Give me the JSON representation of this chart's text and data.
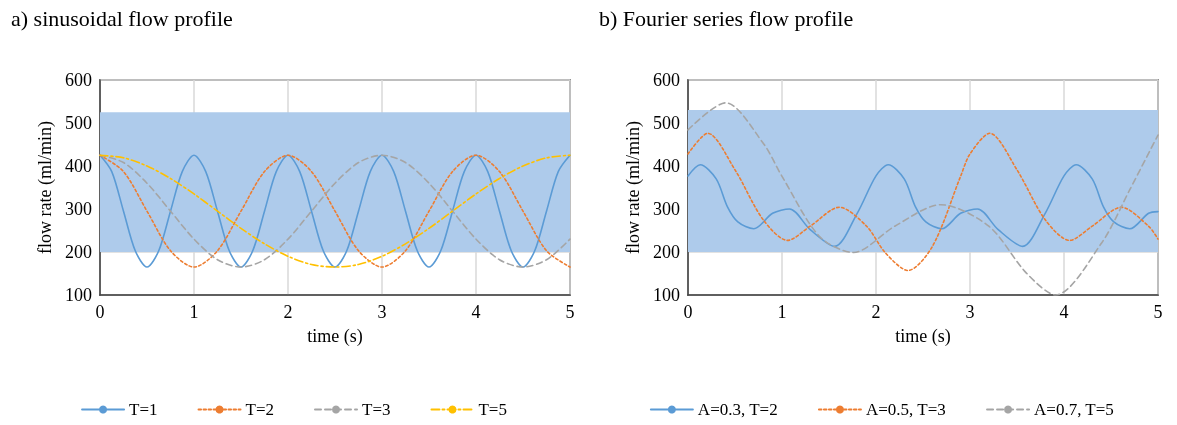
{
  "chart_data": [
    {
      "type": "line",
      "title": "a) sinusoidal flow profile",
      "xlabel": "time (s)",
      "ylabel": "flow rate (ml/min)",
      "xlim": [
        0,
        5
      ],
      "xticks": [
        0,
        1,
        2,
        3,
        4,
        5
      ],
      "ylim": [
        100,
        600
      ],
      "yticks": [
        100,
        200,
        300,
        400,
        500,
        600
      ],
      "grid": true,
      "legend": "bottom",
      "marker": "none",
      "bands": [
        {
          "axis": "y",
          "from": 200,
          "to": 525,
          "color": "#aecbeb"
        }
      ],
      "series": [
        {
          "name": "T=1",
          "color": "#5b9bd5",
          "line_style": "solid",
          "x": [
            0,
            0.125,
            0.25,
            0.375,
            0.5,
            0.625,
            0.75,
            0.875,
            1,
            1.125,
            1.25,
            1.375,
            1.5,
            1.625,
            1.75,
            1.875,
            2,
            2.125,
            2.25,
            2.375,
            2.5,
            2.625,
            2.75,
            2.875,
            3,
            3.125,
            3.25,
            3.375,
            3.5,
            3.625,
            3.75,
            3.875,
            4,
            4.125,
            4.25,
            4.375,
            4.5,
            4.625,
            4.75,
            4.875,
            5
          ],
          "values": [
            425,
            387,
            295,
            203,
            165,
            203,
            295,
            387,
            425,
            387,
            295,
            203,
            165,
            203,
            295,
            387,
            425,
            387,
            295,
            203,
            165,
            203,
            295,
            387,
            425,
            387,
            295,
            203,
            165,
            203,
            295,
            387,
            425,
            387,
            295,
            203,
            165,
            203,
            295,
            387,
            425
          ]
        },
        {
          "name": "T=2",
          "color": "#ed7d31",
          "line_style": "dotted",
          "x": [
            0,
            0.25,
            0.5,
            0.75,
            1,
            1.25,
            1.5,
            1.75,
            2,
            2.25,
            2.5,
            2.75,
            3,
            3.25,
            3.5,
            3.75,
            4,
            4.25,
            4.5,
            4.75,
            5
          ],
          "values": [
            425,
            387,
            295,
            203,
            165,
            203,
            295,
            387,
            425,
            387,
            295,
            203,
            165,
            203,
            295,
            387,
            425,
            387,
            295,
            203,
            165
          ]
        },
        {
          "name": "T=3",
          "color": "#a5a5a5",
          "line_style": "dashed",
          "x": [
            0,
            0.25,
            0.5,
            0.75,
            1,
            1.25,
            1.5,
            1.75,
            2,
            2.25,
            2.5,
            2.75,
            3,
            3.25,
            3.5,
            3.75,
            4,
            4.25,
            4.5,
            4.75,
            5
          ],
          "values": [
            425,
            408,
            360,
            295,
            230,
            182,
            165,
            182,
            230,
            295,
            360,
            408,
            425,
            408,
            360,
            295,
            230,
            182,
            165,
            182,
            230
          ]
        },
        {
          "name": "T=5",
          "color": "#ffc000",
          "line_style": "dashdot",
          "x": [
            0,
            0.25,
            0.5,
            0.75,
            1,
            1.25,
            1.5,
            1.75,
            2,
            2.25,
            2.5,
            2.75,
            3,
            3.25,
            3.5,
            3.75,
            4,
            4.25,
            4.5,
            4.75,
            5
          ],
          "values": [
            425,
            419,
            400,
            371,
            335,
            295,
            255,
            219,
            190,
            171,
            165,
            171,
            190,
            219,
            255,
            295,
            335,
            371,
            400,
            419,
            425
          ]
        }
      ]
    },
    {
      "type": "line",
      "title": "b) Fourier series flow profile",
      "xlabel": "time (s)",
      "ylabel": "flow rate (ml/min)",
      "xlim": [
        0,
        5
      ],
      "xticks": [
        0,
        1,
        2,
        3,
        4,
        5
      ],
      "ylim": [
        100,
        600
      ],
      "yticks": [
        100,
        200,
        300,
        400,
        500,
        600
      ],
      "grid": true,
      "legend": "bottom",
      "marker": "none",
      "bands": [
        {
          "axis": "y",
          "from": 200,
          "to": 530,
          "color": "#aecbeb"
        }
      ],
      "series": [
        {
          "name": "A=0.3, T=2",
          "color": "#5b9bd5",
          "line_style": "solid",
          "x": [
            0,
            0.13,
            0.3,
            0.42,
            0.53,
            0.7,
            0.9,
            1.08,
            1.3,
            1.56,
            1.8,
            2,
            2.13,
            2.3,
            2.42,
            2.53,
            2.7,
            2.9,
            3.08,
            3.3,
            3.56,
            3.8,
            4,
            4.13,
            4.3,
            4.42,
            4.53,
            4.7,
            4.9,
            5
          ],
          "values": [
            377,
            403,
            370,
            305,
            270,
            254,
            290,
            300,
            252,
            213,
            290,
            377,
            403,
            370,
            305,
            270,
            254,
            290,
            300,
            252,
            213,
            290,
            377,
            403,
            370,
            305,
            270,
            254,
            290,
            294
          ]
        },
        {
          "name": "A=0.5, T=3",
          "color": "#ed7d31",
          "line_style": "dotted",
          "x": [
            0,
            0.21,
            0.5,
            0.8,
            1.06,
            1.3,
            1.61,
            1.9,
            2.1,
            2.34,
            2.6,
            2.9,
            3,
            3.21,
            3.5,
            3.8,
            4.06,
            4.3,
            4.61,
            4.9,
            5
          ],
          "values": [
            428,
            476,
            391,
            275,
            227,
            260,
            304,
            260,
            198,
            157,
            213,
            376,
            428,
            476,
            391,
            275,
            227,
            260,
            304,
            260,
            230
          ]
        },
        {
          "name": "A=0.7, T=5",
          "color": "#a5a5a5",
          "line_style": "dashed",
          "x": [
            0,
            0.4,
            0.8,
            1,
            1.4,
            1.76,
            2.2,
            2.69,
            3.2,
            3.6,
            3.91,
            4.4,
            4.7,
            5
          ],
          "values": [
            484,
            547,
            453,
            376,
            236,
            199,
            260,
            310,
            260,
            151,
            100,
            221,
            345,
            472
          ]
        }
      ]
    }
  ]
}
